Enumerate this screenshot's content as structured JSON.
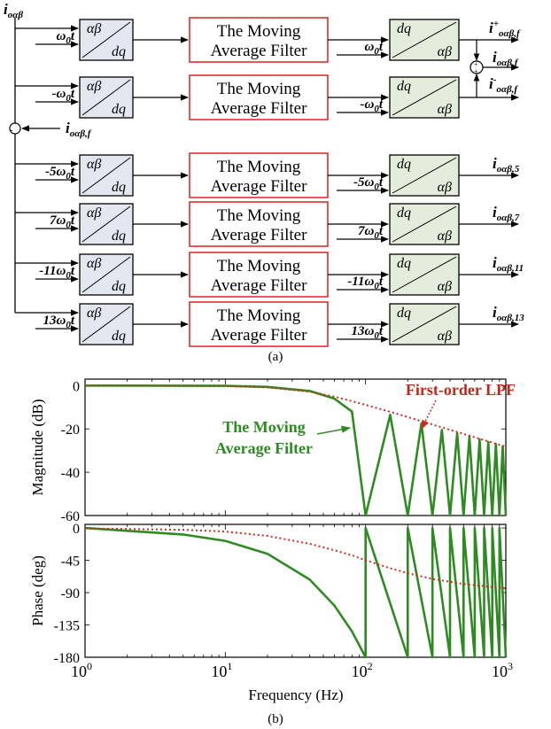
{
  "part_a": {
    "caption": "(a)",
    "input_label": "i",
    "input_sub": "oαβ",
    "feedback_label": "i",
    "feedback_sub": "oαβ,f",
    "forward_top": "αβ",
    "forward_bottom": "dq",
    "inverse_top": "dq",
    "inverse_bottom": "αβ",
    "filter_line1": "The Moving",
    "filter_line2": "Average Filter",
    "sum_sign": "+",
    "diff_sign": "-",
    "channels": [
      {
        "freq_coef": "",
        "output_label": "i",
        "output_sup": "+",
        "output_sub": "oαβ,f"
      },
      {
        "freq_coef": "-",
        "output_label": "i",
        "output_sup": "-",
        "output_sub": "oαβ,f"
      },
      {
        "freq_coef": "-5",
        "output_label": "i",
        "output_sup": "",
        "output_sub": "oαβ,5"
      },
      {
        "freq_coef": "7",
        "output_label": "i",
        "output_sup": "",
        "output_sub": "oαβ,7"
      },
      {
        "freq_coef": "-11",
        "output_label": "i",
        "output_sup": "",
        "output_sub": "oαβ,11"
      },
      {
        "freq_coef": "13",
        "output_label": "i",
        "output_sup": "",
        "output_sub": "oαβ,13"
      }
    ],
    "sum_output": {
      "output_label": "i",
      "output_sub": "oαβ,f"
    },
    "omega": "ω",
    "omega_sub": "0",
    "t": "t"
  },
  "part_b": {
    "caption": "(b)",
    "chart_data": [
      {
        "type": "line",
        "ylabel": "Magnitude (dB)",
        "x_scale": "log",
        "xlim": [
          1,
          1000
        ],
        "ylim": [
          -60,
          3
        ],
        "yticks": [
          "0",
          "-20",
          "-40",
          "-60"
        ],
        "yticks_values": [
          0,
          -20,
          -40,
          -60
        ],
        "series": [
          {
            "name": "The Moving Average Filter",
            "line_name": "The Moving",
            "line_name2": "Average Filter",
            "color": "#2e8b22",
            "style": "solid",
            "points": [
              [
                1,
                0
              ],
              [
                10,
                -0.1
              ],
              [
                20,
                -0.6
              ],
              [
                40,
                -2.5
              ],
              [
                60,
                -6
              ],
              [
                80,
                -12
              ],
              [
                100,
                -60
              ],
              [
                150,
                -13.5
              ],
              [
                200,
                -60
              ],
              [
                250,
                -17.5
              ],
              [
                300,
                -60
              ],
              [
                350,
                -20.5
              ],
              [
                400,
                -60
              ],
              [
                450,
                -22
              ],
              [
                500,
                -60
              ],
              [
                550,
                -23.5
              ],
              [
                600,
                -60
              ],
              [
                650,
                -24.8
              ],
              [
                700,
                -60
              ],
              [
                750,
                -26
              ],
              [
                800,
                -60
              ],
              [
                850,
                -27
              ],
              [
                900,
                -60
              ],
              [
                950,
                -28
              ],
              [
                1000,
                -60
              ]
            ]
          },
          {
            "name": "First-order LPF",
            "color": "#d42a1c",
            "style": "dotted",
            "points": [
              [
                1,
                0
              ],
              [
                10,
                -0.2
              ],
              [
                20,
                -0.8
              ],
              [
                40,
                -2.8
              ],
              [
                60,
                -5.1
              ],
              [
                80,
                -7.2
              ],
              [
                100,
                -8.9
              ],
              [
                150,
                -12.1
              ],
              [
                200,
                -14.5
              ],
              [
                300,
                -18
              ],
              [
                500,
                -22.3
              ],
              [
                700,
                -25.2
              ],
              [
                1000,
                -28.2
              ]
            ]
          }
        ]
      },
      {
        "type": "line",
        "ylabel": "Phase (deg)",
        "xlabel": "Frequency (Hz)",
        "x_scale": "log",
        "xlim": [
          1,
          1000
        ],
        "ylim": [
          -180,
          5
        ],
        "yticks": [
          "0",
          "-45",
          "-90",
          "-135",
          "-180"
        ],
        "yticks_values": [
          0,
          -45,
          -90,
          -135,
          -180
        ],
        "xticks_base": "10",
        "xticks_exp": [
          "0",
          "1",
          "2",
          "3"
        ],
        "xticks_values": [
          1,
          10,
          100,
          1000
        ],
        "series": [
          {
            "name": "The Moving Average Filter",
            "color": "#2e8b22",
            "style": "solid",
            "points": [
              [
                1,
                0
              ],
              [
                5,
                -9
              ],
              [
                10,
                -18
              ],
              [
                20,
                -36
              ],
              [
                40,
                -72
              ],
              [
                60,
                -108
              ],
              [
                80,
                -144
              ],
              [
                100,
                -180
              ],
              [
                100,
                0
              ],
              [
                200,
                -180
              ],
              [
                200,
                0
              ],
              [
                300,
                -180
              ],
              [
                300,
                0
              ],
              [
                400,
                -180
              ],
              [
                400,
                0
              ],
              [
                500,
                -180
              ],
              [
                500,
                0
              ],
              [
                600,
                -180
              ],
              [
                600,
                0
              ],
              [
                700,
                -180
              ],
              [
                700,
                0
              ],
              [
                800,
                -180
              ],
              [
                800,
                0
              ],
              [
                900,
                -180
              ],
              [
                900,
                0
              ],
              [
                1000,
                -180
              ]
            ]
          },
          {
            "name": "First-order LPF",
            "color": "#d42a1c",
            "style": "dotted",
            "points": [
              [
                1,
                -0.5
              ],
              [
                5,
                -2.5
              ],
              [
                10,
                -5
              ],
              [
                20,
                -11
              ],
              [
                40,
                -22
              ],
              [
                60,
                -31
              ],
              [
                80,
                -38
              ],
              [
                100,
                -45
              ],
              [
                150,
                -56
              ],
              [
                200,
                -63
              ],
              [
                300,
                -71
              ],
              [
                500,
                -78
              ],
              [
                700,
                -81
              ],
              [
                1000,
                -84
              ]
            ]
          }
        ]
      }
    ]
  }
}
